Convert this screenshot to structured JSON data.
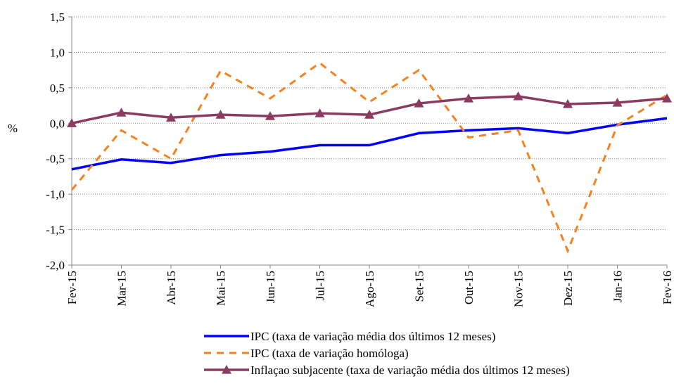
{
  "chart_data": {
    "type": "line",
    "y_label": "%",
    "categories": [
      "Fev-15",
      "Mar-15",
      "Abr-15",
      "Mai-15",
      "Jun-15",
      "Jul-15",
      "Ago-15",
      "Set-15",
      "Out-15",
      "Nov-15",
      "Dez-15",
      "Jan-16",
      "Fev-16"
    ],
    "series": [
      {
        "name": "IPC (taxa de variação média dos últimos 12 meses)",
        "color": "#0000ff",
        "style": "solid",
        "marker": "none",
        "values": [
          -0.65,
          -0.51,
          -0.56,
          -0.45,
          -0.4,
          -0.31,
          -0.31,
          -0.14,
          -0.1,
          -0.07,
          -0.14,
          -0.02,
          0.07
        ]
      },
      {
        "name": "IPC (taxa de variação homóloga)",
        "color": "#f58220",
        "style": "dashed",
        "marker": "none",
        "values": [
          -0.94,
          -0.1,
          -0.5,
          0.74,
          0.35,
          0.85,
          0.3,
          0.75,
          -0.2,
          -0.1,
          -1.8,
          -0.03,
          0.4
        ]
      },
      {
        "name": "Inflaçao subjacente (taxa de variação média dos últimos 12 meses)",
        "color": "#8b3a62",
        "style": "solid",
        "marker": "triangle",
        "values": [
          0.0,
          0.15,
          0.08,
          0.12,
          0.1,
          0.14,
          0.12,
          0.28,
          0.35,
          0.38,
          0.27,
          0.29,
          0.35
        ]
      }
    ],
    "ylim": [
      -2.0,
      1.5
    ],
    "yticks": [
      {
        "value": -2.0,
        "label": "-2,0"
      },
      {
        "value": -1.5,
        "label": "-1,5"
      },
      {
        "value": -1.0,
        "label": "-1,0"
      },
      {
        "value": -0.5,
        "label": "-0,5"
      },
      {
        "value": 0.0,
        "label": "0,0"
      },
      {
        "value": 0.5,
        "label": "0,5"
      },
      {
        "value": 1.0,
        "label": "1,0"
      },
      {
        "value": 1.5,
        "label": "1,5"
      }
    ],
    "grid": true
  }
}
